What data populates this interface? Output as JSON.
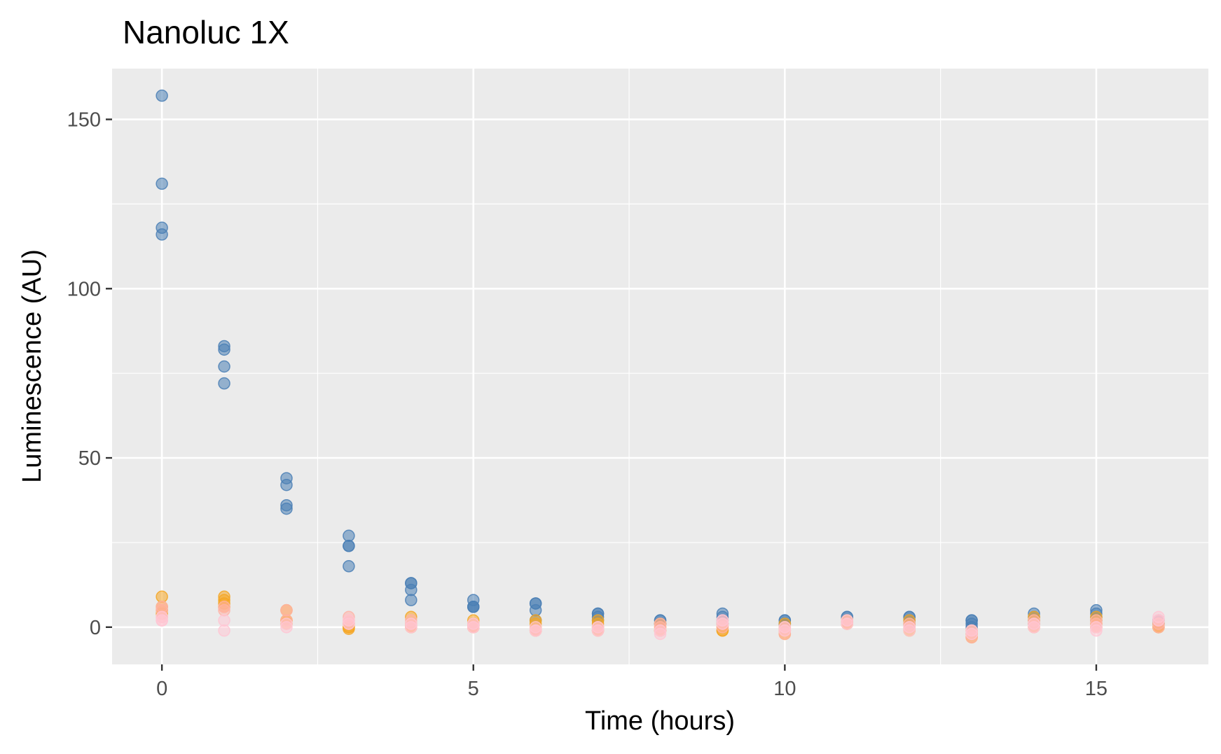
{
  "chart_data": {
    "type": "scatter",
    "title": "Nanoluc 1X",
    "xlabel": "Time (hours)",
    "ylabel": "Luminescence (AU)",
    "xlim": [
      -0.8,
      16.8
    ],
    "ylim": [
      -11,
      165
    ],
    "x_ticks": [
      0,
      5,
      10,
      15
    ],
    "y_ticks": [
      0,
      50,
      100,
      150
    ],
    "x_tick_labels": [
      "0",
      "5",
      "10",
      "15"
    ],
    "y_tick_labels": [
      "0",
      "50",
      "100",
      "150"
    ],
    "x_minor": [
      2.5,
      7.5,
      12.5
    ],
    "y_minor": [
      25,
      75,
      125
    ],
    "grid": true,
    "legend": "none",
    "series": [
      {
        "color": "#4a7fb5",
        "points": [
          [
            0,
            157
          ],
          [
            0,
            131
          ],
          [
            0,
            118
          ],
          [
            0,
            116
          ],
          [
            1,
            83
          ],
          [
            1,
            82
          ],
          [
            1,
            77
          ],
          [
            1,
            72
          ],
          [
            2,
            44
          ],
          [
            2,
            42
          ],
          [
            2,
            36
          ],
          [
            2,
            35
          ],
          [
            3,
            27
          ],
          [
            3,
            24
          ],
          [
            3,
            24
          ],
          [
            3,
            18
          ],
          [
            4,
            13
          ],
          [
            4,
            13
          ],
          [
            4,
            11
          ],
          [
            4,
            8
          ],
          [
            5,
            8
          ],
          [
            5,
            6
          ],
          [
            5,
            6
          ],
          [
            5,
            6
          ],
          [
            6,
            7
          ],
          [
            6,
            7
          ],
          [
            6,
            5
          ],
          [
            6,
            2
          ],
          [
            7,
            4
          ],
          [
            7,
            4
          ],
          [
            7,
            3
          ],
          [
            7,
            2
          ],
          [
            8,
            2
          ],
          [
            8,
            2
          ],
          [
            8,
            1
          ],
          [
            8,
            1
          ],
          [
            9,
            4
          ],
          [
            9,
            3
          ],
          [
            9,
            2
          ],
          [
            9,
            1
          ],
          [
            10,
            2
          ],
          [
            10,
            2
          ],
          [
            10,
            1
          ],
          [
            10,
            1
          ],
          [
            11,
            3
          ],
          [
            11,
            3
          ],
          [
            11,
            2
          ],
          [
            11,
            2
          ],
          [
            12,
            3
          ],
          [
            12,
            3
          ],
          [
            12,
            2
          ],
          [
            12,
            1
          ],
          [
            13,
            2
          ],
          [
            13,
            2
          ],
          [
            13,
            1
          ],
          [
            13,
            0
          ],
          [
            14,
            4
          ],
          [
            14,
            3
          ],
          [
            14,
            2
          ],
          [
            14,
            1
          ],
          [
            15,
            5
          ],
          [
            15,
            4
          ],
          [
            15,
            3
          ],
          [
            15,
            2
          ],
          [
            16,
            2
          ],
          [
            16,
            2
          ],
          [
            16,
            1
          ],
          [
            16,
            1
          ]
        ]
      },
      {
        "color": "#f5a623",
        "points": [
          [
            0,
            9
          ],
          [
            0,
            6
          ],
          [
            0,
            5
          ],
          [
            0,
            4
          ],
          [
            1,
            9
          ],
          [
            1,
            8
          ],
          [
            1,
            7
          ],
          [
            1,
            6
          ],
          [
            2,
            5
          ],
          [
            2,
            2
          ],
          [
            2,
            2
          ],
          [
            2,
            1
          ],
          [
            3,
            1
          ],
          [
            3,
            0
          ],
          [
            3,
            0
          ],
          [
            3,
            -0.5
          ],
          [
            4,
            3
          ],
          [
            4,
            1
          ],
          [
            4,
            0
          ],
          [
            4,
            0
          ],
          [
            5,
            2
          ],
          [
            5,
            1
          ],
          [
            5,
            0
          ],
          [
            5,
            0
          ],
          [
            6,
            2
          ],
          [
            6,
            1
          ],
          [
            6,
            0
          ],
          [
            6,
            -1
          ],
          [
            7,
            2
          ],
          [
            7,
            1
          ],
          [
            7,
            0
          ],
          [
            7,
            -1
          ],
          [
            8,
            1
          ],
          [
            8,
            0
          ],
          [
            8,
            -1
          ],
          [
            8,
            -1
          ],
          [
            9,
            1
          ],
          [
            9,
            0
          ],
          [
            9,
            -1
          ],
          [
            9,
            -1
          ],
          [
            10,
            1
          ],
          [
            10,
            0
          ],
          [
            10,
            -1
          ],
          [
            10,
            -2
          ],
          [
            11,
            2
          ],
          [
            11,
            2
          ],
          [
            11,
            1
          ],
          [
            11,
            1
          ],
          [
            12,
            2
          ],
          [
            12,
            1
          ],
          [
            12,
            0
          ],
          [
            12,
            -1
          ],
          [
            13,
            -1
          ],
          [
            13,
            -2
          ],
          [
            13,
            -2
          ],
          [
            13,
            -3
          ],
          [
            14,
            3
          ],
          [
            14,
            2
          ],
          [
            14,
            1
          ],
          [
            14,
            0
          ],
          [
            15,
            3
          ],
          [
            15,
            2
          ],
          [
            15,
            1
          ],
          [
            15,
            0
          ],
          [
            16,
            1
          ],
          [
            16,
            0
          ],
          [
            16,
            0
          ],
          [
            16,
            0
          ]
        ]
      },
      {
        "color": "#ffb3a7",
        "points": [
          [
            0,
            6
          ],
          [
            0,
            5
          ],
          [
            0,
            3
          ],
          [
            1,
            6
          ],
          [
            1,
            5
          ],
          [
            2,
            5
          ],
          [
            2,
            2
          ],
          [
            3,
            3
          ],
          [
            3,
            2
          ],
          [
            3,
            1
          ],
          [
            4,
            2
          ],
          [
            4,
            1
          ],
          [
            4,
            0
          ],
          [
            5,
            1
          ],
          [
            5,
            0
          ],
          [
            5,
            0
          ],
          [
            6,
            -1
          ],
          [
            6,
            -1
          ],
          [
            7,
            0
          ],
          [
            7,
            -1
          ],
          [
            8,
            1
          ],
          [
            8,
            0
          ],
          [
            8,
            -1
          ],
          [
            9,
            2
          ],
          [
            9,
            1
          ],
          [
            9,
            0
          ],
          [
            10,
            0
          ],
          [
            10,
            -1
          ],
          [
            10,
            -2
          ],
          [
            11,
            2
          ],
          [
            11,
            1
          ],
          [
            12,
            1
          ],
          [
            12,
            0
          ],
          [
            13,
            -1
          ],
          [
            13,
            -2
          ],
          [
            13,
            -3
          ],
          [
            14,
            2
          ],
          [
            14,
            1
          ],
          [
            14,
            0
          ],
          [
            15,
            2
          ],
          [
            15,
            1
          ],
          [
            15,
            0
          ],
          [
            16,
            2
          ],
          [
            16,
            1
          ],
          [
            16,
            0
          ]
        ]
      },
      {
        "color": "#ffc6d3",
        "points": [
          [
            0,
            3
          ],
          [
            0,
            2
          ],
          [
            0,
            2
          ],
          [
            1,
            2
          ],
          [
            1,
            -1
          ],
          [
            2,
            1
          ],
          [
            2,
            0
          ],
          [
            3,
            2
          ],
          [
            3,
            1
          ],
          [
            4,
            1
          ],
          [
            4,
            0
          ],
          [
            5,
            1
          ],
          [
            5,
            0
          ],
          [
            6,
            0
          ],
          [
            6,
            -1
          ],
          [
            7,
            0
          ],
          [
            7,
            -1
          ],
          [
            8,
            -1
          ],
          [
            8,
            -2
          ],
          [
            9,
            2
          ],
          [
            9,
            1
          ],
          [
            10,
            0
          ],
          [
            10,
            -1
          ],
          [
            11,
            2
          ],
          [
            11,
            1
          ],
          [
            12,
            0
          ],
          [
            12,
            -1
          ],
          [
            13,
            -1
          ],
          [
            13,
            -2
          ],
          [
            14,
            1
          ],
          [
            14,
            0
          ],
          [
            15,
            0
          ],
          [
            15,
            -1
          ],
          [
            16,
            3
          ],
          [
            16,
            2
          ]
        ]
      }
    ]
  }
}
